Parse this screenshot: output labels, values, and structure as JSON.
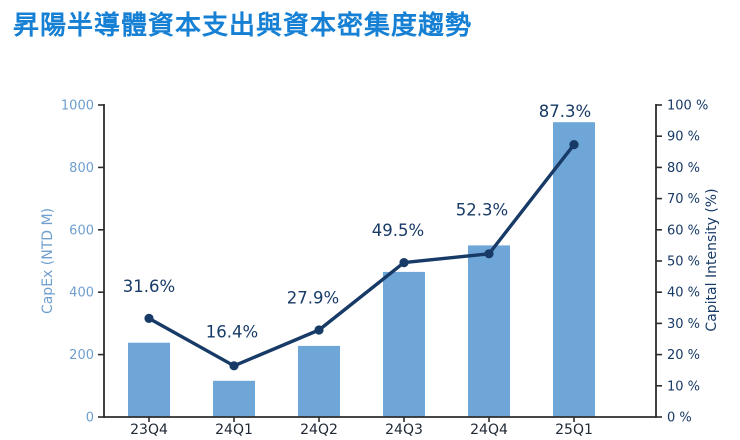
{
  "title": "昇陽半導體資本支出與資本密集度趨勢",
  "chart_data": {
    "type": "combo",
    "title": "昇陽半導體資本支出與資本密集度趨勢",
    "title_color": "#1680d4",
    "categories": [
      "23Q4",
      "24Q1",
      "24Q2",
      "24Q3",
      "24Q4",
      "25Q1"
    ],
    "series": [
      {
        "name": "CapEx",
        "type": "bar",
        "axis": "left",
        "values": [
          238,
          116,
          228,
          465,
          550,
          945
        ],
        "color": "#6fa6d8"
      },
      {
        "name": "Capital Intensity",
        "type": "line",
        "axis": "right",
        "values": [
          31.6,
          16.4,
          27.9,
          49.5,
          52.3,
          87.3
        ],
        "labels": [
          "31.6%",
          "16.4%",
          "27.9%",
          "49.5%",
          "52.3%",
          "87.3%"
        ],
        "color": "#173a66"
      }
    ],
    "left_axis": {
      "label": "CapEx (NTD M)",
      "min": 0,
      "max": 1000,
      "step": 200,
      "tick_labels": [
        "0",
        "200",
        "400",
        "600",
        "800",
        "1000"
      ],
      "color": "#6f9fce"
    },
    "right_axis": {
      "label": "Capital Intensity (%)",
      "min": 0,
      "max": 100,
      "step": 10,
      "tick_labels": [
        "0 %",
        "10 %",
        "20 %",
        "30 %",
        "40 %",
        "50 %",
        "60 %",
        "70 %",
        "80 %",
        "90 %",
        "100 %"
      ],
      "color": "#173a66"
    },
    "x_axis": {
      "tick_labels": [
        "23Q4",
        "24Q1",
        "24Q2",
        "24Q3",
        "24Q4",
        "25Q1"
      ],
      "color": "#202a35"
    },
    "spine_color": "#2d2d2d",
    "grid": false,
    "legend": "none"
  }
}
